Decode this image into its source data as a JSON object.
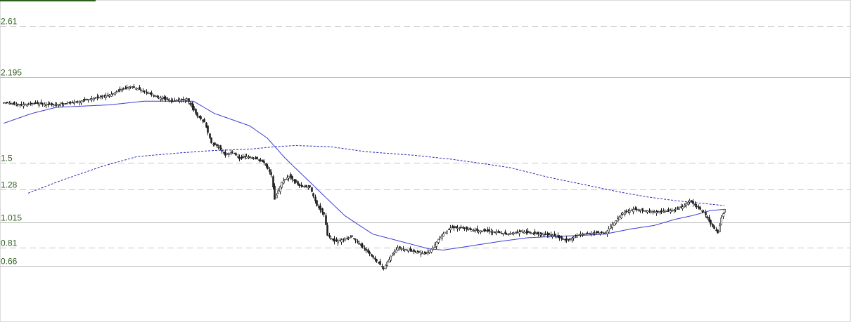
{
  "chart_data": {
    "type": "candlestick",
    "title": "",
    "xlabel": "",
    "ylabel": "",
    "y_ticks": [
      {
        "label": "2.61",
        "value": 2.61,
        "style": "dashed"
      },
      {
        "label": "2.195",
        "value": 2.195,
        "style": "solid"
      },
      {
        "label": "1.5",
        "value": 1.5,
        "style": "dashed"
      },
      {
        "label": "1.28",
        "value": 1.28,
        "style": "dashed"
      },
      {
        "label": "1.015",
        "value": 1.015,
        "style": "solid"
      },
      {
        "label": "0.81",
        "value": 0.81,
        "style": "dashed"
      },
      {
        "label": "0.66",
        "value": 0.66,
        "style": "solid"
      }
    ],
    "grid": true,
    "colors": {
      "up_candle": "#ffffff",
      "down_candle": "#1f1f1f",
      "wick": "#1f1f1f",
      "short_ma": "#3a3ad6",
      "long_ma": "#2b2bb8",
      "tick_text": "#2f5f1f",
      "accent_bar": "#2f5f1f"
    },
    "close_path": [
      [
        0,
        1.99
      ],
      [
        8,
        1.97
      ],
      [
        18,
        1.98
      ],
      [
        28,
        1.97
      ],
      [
        40,
        1.99
      ],
      [
        50,
        2.02
      ],
      [
        60,
        2.05
      ],
      [
        66,
        2.09
      ],
      [
        72,
        2.12
      ],
      [
        80,
        2.08
      ],
      [
        88,
        2.03
      ],
      [
        96,
        2.0
      ],
      [
        104,
        2.02
      ],
      [
        110,
        1.88
      ],
      [
        114,
        1.83
      ],
      [
        118,
        1.66
      ],
      [
        122,
        1.63
      ],
      [
        126,
        1.56
      ],
      [
        130,
        1.59
      ],
      [
        134,
        1.53
      ],
      [
        138,
        1.55
      ],
      [
        144,
        1.53
      ],
      [
        148,
        1.5
      ],
      [
        152,
        1.4
      ],
      [
        154,
        1.2
      ],
      [
        158,
        1.34
      ],
      [
        162,
        1.39
      ],
      [
        168,
        1.31
      ],
      [
        174,
        1.3
      ],
      [
        178,
        1.15
      ],
      [
        182,
        1.08
      ],
      [
        184,
        0.91
      ],
      [
        188,
        0.86
      ],
      [
        194,
        0.88
      ],
      [
        198,
        0.9
      ],
      [
        202,
        0.84
      ],
      [
        208,
        0.76
      ],
      [
        212,
        0.7
      ],
      [
        216,
        0.64
      ],
      [
        220,
        0.74
      ],
      [
        224,
        0.81
      ],
      [
        230,
        0.79
      ],
      [
        236,
        0.77
      ],
      [
        240,
        0.76
      ],
      [
        244,
        0.81
      ],
      [
        248,
        0.9
      ],
      [
        254,
        0.97
      ],
      [
        260,
        0.97
      ],
      [
        268,
        0.95
      ],
      [
        278,
        0.94
      ],
      [
        286,
        0.92
      ],
      [
        294,
        0.94
      ],
      [
        304,
        0.92
      ],
      [
        312,
        0.91
      ],
      [
        320,
        0.87
      ],
      [
        328,
        0.92
      ],
      [
        336,
        0.93
      ],
      [
        342,
        0.93
      ],
      [
        348,
        1.03
      ],
      [
        352,
        1.09
      ],
      [
        358,
        1.12
      ],
      [
        364,
        1.11
      ],
      [
        372,
        1.1
      ],
      [
        380,
        1.11
      ],
      [
        386,
        1.14
      ],
      [
        390,
        1.19
      ],
      [
        394,
        1.14
      ],
      [
        398,
        1.1
      ],
      [
        402,
        1.0
      ],
      [
        406,
        0.93
      ],
      [
        408,
        1.05
      ],
      [
        410,
        1.12
      ]
    ],
    "short_ma_path": [
      [
        0,
        1.82
      ],
      [
        16,
        1.9
      ],
      [
        30,
        1.95
      ],
      [
        60,
        1.97
      ],
      [
        80,
        2.0
      ],
      [
        108,
        2.0
      ],
      [
        120,
        1.9
      ],
      [
        140,
        1.8
      ],
      [
        150,
        1.7
      ],
      [
        160,
        1.54
      ],
      [
        180,
        1.26
      ],
      [
        194,
        1.07
      ],
      [
        210,
        0.92
      ],
      [
        226,
        0.86
      ],
      [
        242,
        0.8
      ],
      [
        250,
        0.79
      ],
      [
        264,
        0.82
      ],
      [
        282,
        0.86
      ],
      [
        298,
        0.89
      ],
      [
        312,
        0.9
      ],
      [
        330,
        0.91
      ],
      [
        342,
        0.92
      ],
      [
        356,
        0.96
      ],
      [
        370,
        0.99
      ],
      [
        382,
        1.04
      ],
      [
        392,
        1.07
      ],
      [
        402,
        1.11
      ],
      [
        410,
        1.12
      ]
    ],
    "long_ma_path": [
      [
        14,
        1.25
      ],
      [
        34,
        1.36
      ],
      [
        56,
        1.47
      ],
      [
        76,
        1.55
      ],
      [
        100,
        1.58
      ],
      [
        120,
        1.6
      ],
      [
        140,
        1.61
      ],
      [
        154,
        1.63
      ],
      [
        166,
        1.64
      ],
      [
        186,
        1.63
      ],
      [
        206,
        1.59
      ],
      [
        234,
        1.56
      ],
      [
        254,
        1.53
      ],
      [
        274,
        1.49
      ],
      [
        288,
        1.46
      ],
      [
        310,
        1.38
      ],
      [
        330,
        1.32
      ],
      [
        350,
        1.26
      ],
      [
        366,
        1.22
      ],
      [
        382,
        1.19
      ],
      [
        396,
        1.17
      ],
      [
        410,
        1.15
      ]
    ]
  }
}
